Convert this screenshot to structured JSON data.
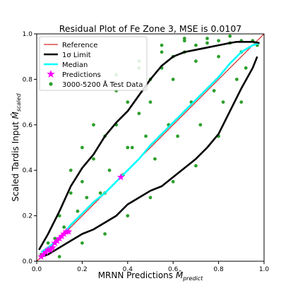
{
  "chart_data": {
    "type": "scatter",
    "title": "Residual Plot of Fe Zone 3, MSE is 0.0107",
    "xlabel": {
      "main": "MRNN Predictions ",
      "symbol": "M̂",
      "subscript": "predict"
    },
    "ylabel": {
      "main": "Scaled Tardis Input ",
      "symbol": "M̂",
      "subscript": "scaled"
    },
    "xlim": [
      0,
      1
    ],
    "ylim": [
      0,
      1
    ],
    "xticks": [
      "0.0",
      "0.2",
      "0.4",
      "0.6",
      "0.8",
      "1.0"
    ],
    "yticks": [
      "0.0",
      "0.2",
      "0.4",
      "0.6",
      "0.8",
      "1.0"
    ],
    "grid": false,
    "legend_position": "top-left",
    "legend": [
      {
        "label": "Reference",
        "kind": "line",
        "color": "#d62728"
      },
      {
        "label": "1σ Limit",
        "kind": "line",
        "color": "#000000"
      },
      {
        "label": "Median",
        "kind": "line",
        "color": "#00ffff"
      },
      {
        "label": "Predictions",
        "kind": "star",
        "color": "#ff00ff"
      },
      {
        "label": "3000-5200 Å Test Data",
        "kind": "dot",
        "color": "#2ca02c"
      }
    ],
    "series": [
      {
        "name": "Reference",
        "type": "line",
        "color": "#d62728",
        "x": [
          0,
          1
        ],
        "y": [
          0,
          1
        ]
      },
      {
        "name": "Median",
        "type": "line",
        "color": "#00ffff",
        "x": [
          0.02,
          0.05,
          0.1,
          0.15,
          0.2,
          0.25,
          0.3,
          0.35,
          0.4,
          0.45,
          0.5,
          0.55,
          0.6,
          0.65,
          0.7,
          0.75,
          0.8,
          0.85,
          0.9,
          0.95,
          0.98
        ],
        "y": [
          0.04,
          0.06,
          0.1,
          0.16,
          0.21,
          0.26,
          0.3,
          0.35,
          0.4,
          0.45,
          0.51,
          0.56,
          0.61,
          0.66,
          0.71,
          0.76,
          0.81,
          0.87,
          0.92,
          0.95,
          0.96
        ]
      },
      {
        "name": "1σ Limit upper",
        "type": "line",
        "color": "#000000",
        "x": [
          0.01,
          0.05,
          0.1,
          0.15,
          0.2,
          0.25,
          0.3,
          0.35,
          0.4,
          0.45,
          0.5,
          0.55,
          0.6,
          0.65,
          0.7,
          0.75,
          0.8,
          0.85,
          0.88,
          0.95,
          0.98
        ],
        "y": [
          0.05,
          0.12,
          0.22,
          0.33,
          0.41,
          0.47,
          0.55,
          0.61,
          0.66,
          0.73,
          0.8,
          0.86,
          0.9,
          0.92,
          0.93,
          0.94,
          0.95,
          0.96,
          0.965,
          0.965,
          0.96
        ]
      },
      {
        "name": "1σ Limit lower",
        "type": "line",
        "color": "#000000",
        "x": [
          0.02,
          0.05,
          0.1,
          0.15,
          0.2,
          0.25,
          0.3,
          0.35,
          0.4,
          0.45,
          0.5,
          0.55,
          0.6,
          0.65,
          0.7,
          0.75,
          0.8,
          0.85,
          0.9,
          0.95,
          0.97
        ],
        "y": [
          0.02,
          0.03,
          0.06,
          0.09,
          0.12,
          0.14,
          0.17,
          0.2,
          0.25,
          0.28,
          0.31,
          0.33,
          0.37,
          0.41,
          0.45,
          0.5,
          0.56,
          0.66,
          0.76,
          0.85,
          0.9
        ]
      },
      {
        "name": "Predictions",
        "type": "scatter",
        "marker": "star",
        "color": "#ff00ff",
        "x": [
          0.02,
          0.03,
          0.04,
          0.05,
          0.06,
          0.07,
          0.08,
          0.09,
          0.1,
          0.11,
          0.12,
          0.13,
          0.14,
          0.37
        ],
        "y": [
          0.02,
          0.03,
          0.04,
          0.05,
          0.05,
          0.06,
          0.08,
          0.09,
          0.1,
          0.11,
          0.12,
          0.13,
          0.13,
          0.37
        ]
      },
      {
        "name": "3000-5200 Å Test Data",
        "type": "scatter",
        "marker": "dot",
        "color": "#2ca02c",
        "x": [
          0.02,
          0.05,
          0.08,
          0.1,
          0.12,
          0.15,
          0.18,
          0.2,
          0.22,
          0.25,
          0.28,
          0.3,
          0.32,
          0.35,
          0.38,
          0.4,
          0.42,
          0.45,
          0.48,
          0.5,
          0.52,
          0.55,
          0.58,
          0.6,
          0.62,
          0.65,
          0.68,
          0.7,
          0.72,
          0.75,
          0.78,
          0.8,
          0.82,
          0.85,
          0.88,
          0.9,
          0.92,
          0.95,
          0.97,
          0.1,
          0.2,
          0.3,
          0.4,
          0.5,
          0.6,
          0.7,
          0.8,
          0.9,
          0.15,
          0.25,
          0.35,
          0.45,
          0.55,
          0.65,
          0.75,
          0.85,
          0.3,
          0.4,
          0.5,
          0.6,
          0.7,
          0.8,
          0.2,
          0.35,
          0.45,
          0.55,
          0.65,
          0.9
        ],
        "y": [
          0.03,
          0.08,
          0.1,
          0.2,
          0.15,
          0.3,
          0.22,
          0.35,
          0.28,
          0.45,
          0.3,
          0.55,
          0.4,
          0.6,
          0.38,
          0.7,
          0.5,
          0.65,
          0.55,
          0.8,
          0.45,
          0.85,
          0.6,
          0.9,
          0.55,
          0.92,
          0.7,
          0.95,
          0.6,
          0.96,
          0.75,
          0.97,
          0.7,
          0.96,
          0.8,
          0.97,
          0.85,
          0.97,
          0.95,
          0.02,
          0.08,
          0.12,
          0.2,
          0.28,
          0.35,
          0.42,
          0.55,
          0.7,
          0.4,
          0.6,
          0.75,
          0.85,
          0.92,
          0.97,
          0.98,
          0.99,
          0.3,
          0.5,
          0.7,
          0.8,
          0.88,
          0.9,
          0.5,
          0.82,
          0.88,
          0.95,
          0.98,
          0.92
        ]
      }
    ]
  }
}
